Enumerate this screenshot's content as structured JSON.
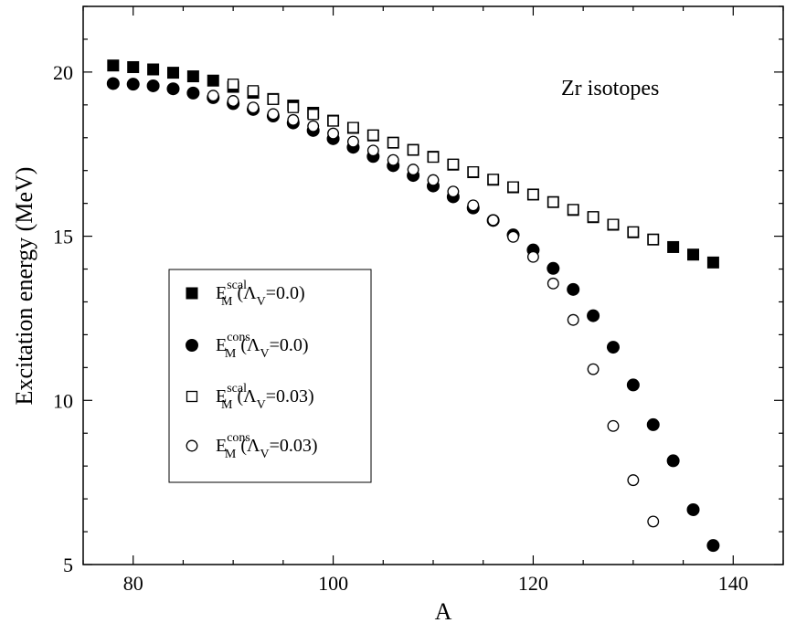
{
  "chart_data": {
    "type": "scatter",
    "title": "",
    "xlabel": "A",
    "ylabel": "Excitation energy  (MeV)",
    "xlim": [
      75,
      145
    ],
    "ylim": [
      5,
      22
    ],
    "xticks": [
      80,
      100,
      120,
      140
    ],
    "yticks": [
      5,
      10,
      15,
      20
    ],
    "grid": false,
    "legend_position": "center-left",
    "annotation": "Zr isotopes",
    "series": [
      {
        "base": "E",
        "sup": "scal",
        "sub": "M",
        "param": " (Λ",
        "param_sub": "V",
        "param_val": "=0.0)",
        "marker": "square-filled",
        "x": [
          78,
          80,
          82,
          84,
          86,
          88,
          90,
          92,
          94,
          96,
          98,
          100,
          102,
          104,
          106,
          108,
          110,
          112,
          114,
          116,
          118,
          120,
          122,
          124,
          126,
          128,
          130,
          132,
          134,
          136,
          138
        ],
        "y": [
          20.2,
          20.15,
          20.08,
          19.98,
          19.87,
          19.74,
          19.55,
          19.37,
          19.18,
          18.98,
          18.76,
          18.52,
          18.3,
          18.07,
          17.85,
          17.63,
          17.42,
          17.18,
          16.95,
          16.72,
          16.49,
          16.27,
          16.04,
          15.8,
          15.58,
          15.35,
          15.12,
          14.9,
          14.67,
          14.44,
          14.2
        ]
      },
      {
        "base": "E",
        "sup": "cons",
        "sub": "M",
        "param": " (Λ",
        "param_sub": "V",
        "param_val": "=0.0)",
        "marker": "circle-filled",
        "x": [
          78,
          80,
          82,
          84,
          86,
          88,
          90,
          92,
          94,
          96,
          98,
          100,
          102,
          104,
          106,
          108,
          110,
          112,
          114,
          116,
          118,
          120,
          122,
          124,
          126,
          128,
          130,
          132,
          134,
          136,
          138
        ],
        "y": [
          19.65,
          19.63,
          19.58,
          19.49,
          19.36,
          19.22,
          19.04,
          18.86,
          18.66,
          18.45,
          18.22,
          17.97,
          17.71,
          17.43,
          17.15,
          16.85,
          16.53,
          16.2,
          15.86,
          15.48,
          15.04,
          14.58,
          14.02,
          13.38,
          12.58,
          11.62,
          10.47,
          9.26,
          8.16,
          6.67,
          5.58
        ]
      },
      {
        "base": "E",
        "sup": "scal",
        "sub": "M",
        "param": " (Λ",
        "param_sub": "V",
        "param_val": "=0.03)",
        "marker": "square-open",
        "x": [
          90,
          92,
          94,
          96,
          98,
          100,
          102,
          104,
          106,
          108,
          110,
          112,
          114,
          116,
          118,
          120,
          122,
          124,
          126,
          128,
          130,
          132
        ],
        "y": [
          19.63,
          19.43,
          19.17,
          18.92,
          18.71,
          18.51,
          18.31,
          18.08,
          17.85,
          17.63,
          17.41,
          17.19,
          16.96,
          16.73,
          16.5,
          16.27,
          16.04,
          15.81,
          15.59,
          15.36,
          15.13,
          14.9
        ]
      },
      {
        "base": "E",
        "sup": "cons",
        "sub": "M",
        "param": " (Λ",
        "param_sub": "V",
        "param_val": "=0.03)",
        "marker": "circle-open",
        "x": [
          88,
          90,
          92,
          94,
          96,
          98,
          100,
          102,
          104,
          106,
          108,
          110,
          112,
          114,
          116,
          118,
          120,
          122,
          124,
          126,
          128,
          130,
          132
        ],
        "y": [
          19.28,
          19.12,
          18.92,
          18.72,
          18.54,
          18.35,
          18.13,
          17.88,
          17.61,
          17.32,
          17.03,
          16.71,
          16.36,
          15.94,
          15.49,
          14.98,
          14.37,
          13.56,
          12.45,
          10.95,
          9.22,
          7.57,
          6.31
        ]
      }
    ]
  }
}
